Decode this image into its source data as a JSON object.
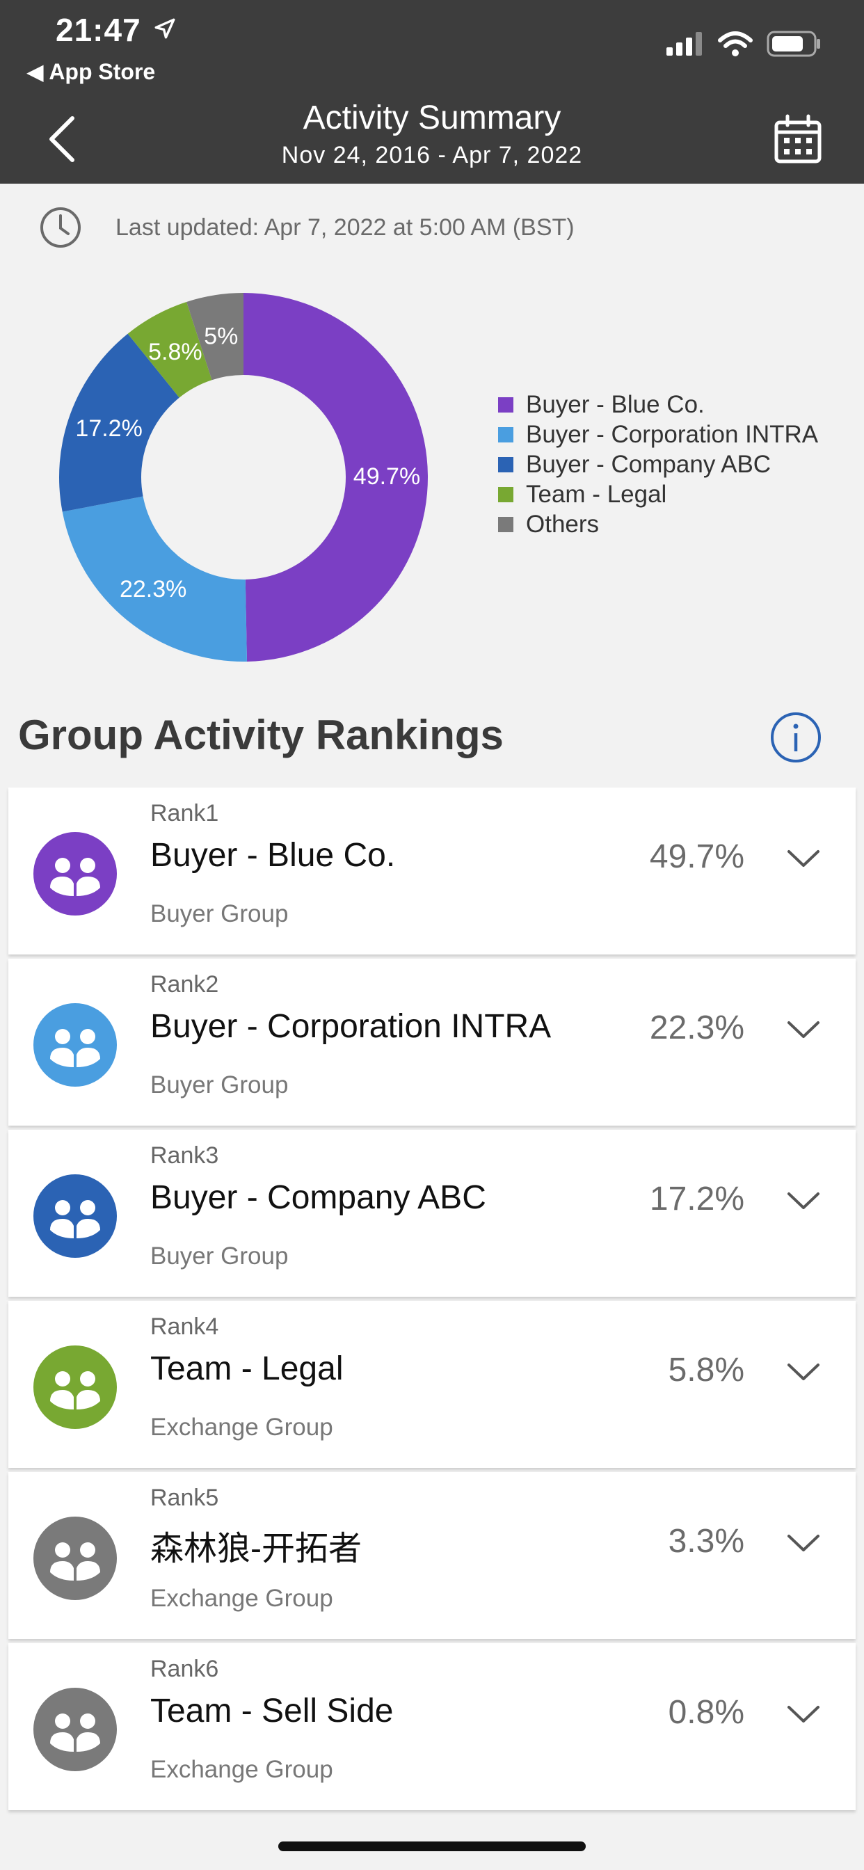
{
  "status": {
    "time": "21:47",
    "back_app": "◀ App Store"
  },
  "header": {
    "title": "Activity Summary",
    "subtitle": "Nov 24, 2016 - Apr 7, 2022"
  },
  "updated": "Last updated: Apr 7, 2022 at 5:00 AM (BST)",
  "chart_data": {
    "type": "pie",
    "categories": [
      "Buyer - Blue Co.",
      "Buyer - Corporation INTRA",
      "Buyer - Company ABC",
      "Team - Legal",
      "Others"
    ],
    "values": [
      49.7,
      22.3,
      17.2,
      5.8,
      5
    ],
    "labels": [
      "49.7%",
      "22.3%",
      "17.2%",
      "5.8%",
      "5%"
    ],
    "colors": [
      "#7b3fc4",
      "#4a9ee0",
      "#2b63b4",
      "#78a832",
      "#7a7a7a"
    ]
  },
  "section_title": "Group Activity Rankings",
  "rankings": [
    {
      "rank": "Rank1",
      "name": "Buyer - Blue Co.",
      "group": "Buyer Group",
      "pct": "49.7%",
      "color": "#7b3fc4"
    },
    {
      "rank": "Rank2",
      "name": "Buyer - Corporation INTRA",
      "group": "Buyer Group",
      "pct": "22.3%",
      "color": "#4a9ee0"
    },
    {
      "rank": "Rank3",
      "name": "Buyer - Company ABC",
      "group": "Buyer Group",
      "pct": "17.2%",
      "color": "#2b63b4"
    },
    {
      "rank": "Rank4",
      "name": "Team - Legal",
      "group": "Exchange Group",
      "pct": "5.8%",
      "color": "#78a832"
    },
    {
      "rank": "Rank5",
      "name": "森林狼-开拓者",
      "group": "Exchange Group",
      "pct": "3.3%",
      "color": "#7a7a7a"
    },
    {
      "rank": "Rank6",
      "name": "Team - Sell Side",
      "group": "Exchange Group",
      "pct": "0.8%",
      "color": "#7a7a7a"
    }
  ]
}
